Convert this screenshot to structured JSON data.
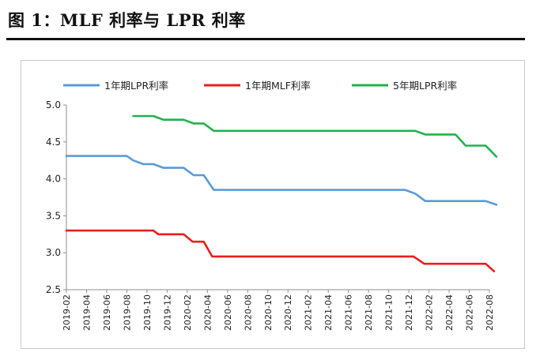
{
  "page": {
    "title": "图 1：MLF 利率与 LPR 利率"
  },
  "chart_data": {
    "type": "line",
    "title": "",
    "xlabel": "",
    "ylabel": "",
    "ylim": [
      2.5,
      5.0
    ],
    "yticks": [
      "5.0",
      "4.5",
      "4.0",
      "3.5",
      "3.0",
      "2.5"
    ],
    "grid": false,
    "legend_position": "top",
    "x_tick_labels": [
      "2019-02",
      "2019-04",
      "2019-06",
      "2019-08",
      "2019-10",
      "2019-12",
      "2020-02",
      "2020-04",
      "2020-06",
      "2020-08",
      "2020-10",
      "2020-12",
      "2021-02",
      "2021-04",
      "2021-06",
      "2021-08",
      "2021-10",
      "2021-12",
      "2022-02",
      "2022-04",
      "2022-06",
      "2022-08"
    ],
    "series": [
      {
        "name": "1年期LPR利率",
        "color": "#5b9bd5",
        "points": [
          [
            "2019-02-01",
            4.31
          ],
          [
            "2019-08-01",
            4.31
          ],
          [
            "2019-08-20",
            4.25
          ],
          [
            "2019-09-20",
            4.2
          ],
          [
            "2019-10-20",
            4.2
          ],
          [
            "2019-11-20",
            4.15
          ],
          [
            "2020-01-20",
            4.15
          ],
          [
            "2020-02-20",
            4.05
          ],
          [
            "2020-03-20",
            4.05
          ],
          [
            "2020-04-20",
            3.85
          ],
          [
            "2021-11-20",
            3.85
          ],
          [
            "2021-12-20",
            3.8
          ],
          [
            "2022-01-20",
            3.7
          ],
          [
            "2022-07-20",
            3.7
          ],
          [
            "2022-08-22",
            3.65
          ]
        ]
      },
      {
        "name": "1年期MLF利率",
        "color": "#ee1c1c",
        "points": [
          [
            "2019-02-01",
            3.3
          ],
          [
            "2019-10-20",
            3.3
          ],
          [
            "2019-11-05",
            3.25
          ],
          [
            "2020-01-20",
            3.25
          ],
          [
            "2020-02-17",
            3.15
          ],
          [
            "2020-03-20",
            3.15
          ],
          [
            "2020-04-15",
            2.95
          ],
          [
            "2021-12-15",
            2.95
          ],
          [
            "2022-01-17",
            2.85
          ],
          [
            "2022-07-20",
            2.85
          ],
          [
            "2022-08-15",
            2.75
          ]
        ]
      },
      {
        "name": "5年期LPR利率",
        "color": "#22b14c",
        "points": [
          [
            "2019-08-20",
            4.85
          ],
          [
            "2019-10-20",
            4.85
          ],
          [
            "2019-11-20",
            4.8
          ],
          [
            "2020-01-20",
            4.8
          ],
          [
            "2020-02-20",
            4.75
          ],
          [
            "2020-03-20",
            4.75
          ],
          [
            "2020-04-20",
            4.65
          ],
          [
            "2021-12-20",
            4.65
          ],
          [
            "2022-01-20",
            4.6
          ],
          [
            "2022-04-20",
            4.6
          ],
          [
            "2022-05-20",
            4.45
          ],
          [
            "2022-07-20",
            4.45
          ],
          [
            "2022-08-22",
            4.3
          ]
        ]
      }
    ]
  }
}
